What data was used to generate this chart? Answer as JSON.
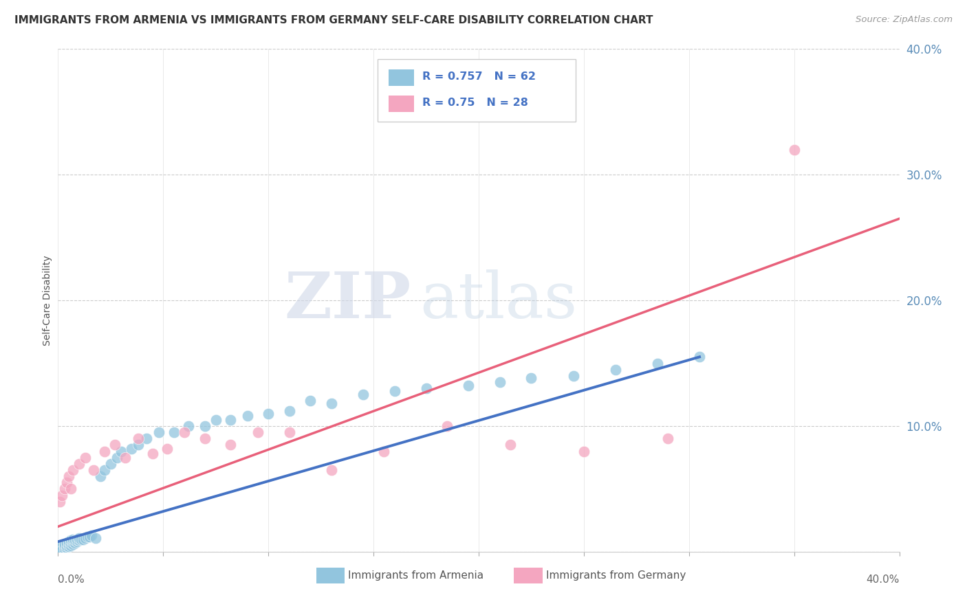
{
  "title": "IMMIGRANTS FROM ARMENIA VS IMMIGRANTS FROM GERMANY SELF-CARE DISABILITY CORRELATION CHART",
  "source": "Source: ZipAtlas.com",
  "ylabel": "Self-Care Disability",
  "armenia_R": 0.757,
  "armenia_N": 62,
  "germany_R": 0.75,
  "germany_N": 28,
  "armenia_color": "#92C5DE",
  "germany_color": "#F4A6C0",
  "armenia_line_color": "#4472C4",
  "germany_line_color": "#E8607A",
  "watermark_zip": "ZIP",
  "watermark_atlas": "atlas",
  "xlim": [
    0.0,
    0.4
  ],
  "ylim": [
    0.0,
    0.4
  ],
  "yticks": [
    0.0,
    0.1,
    0.2,
    0.3,
    0.4
  ],
  "ytick_labels": [
    "",
    "10.0%",
    "20.0%",
    "30.0%",
    "40.0%"
  ],
  "armenia_scatter_x": [
    0.001,
    0.001,
    0.002,
    0.002,
    0.002,
    0.003,
    0.003,
    0.003,
    0.004,
    0.004,
    0.004,
    0.005,
    0.005,
    0.005,
    0.006,
    0.006,
    0.006,
    0.007,
    0.007,
    0.007,
    0.008,
    0.008,
    0.009,
    0.009,
    0.01,
    0.01,
    0.011,
    0.012,
    0.013,
    0.014,
    0.015,
    0.016,
    0.018,
    0.02,
    0.022,
    0.025,
    0.028,
    0.03,
    0.035,
    0.038,
    0.042,
    0.048,
    0.055,
    0.062,
    0.07,
    0.075,
    0.082,
    0.09,
    0.1,
    0.11,
    0.12,
    0.13,
    0.145,
    0.16,
    0.175,
    0.195,
    0.21,
    0.225,
    0.245,
    0.265,
    0.285,
    0.305
  ],
  "armenia_scatter_y": [
    0.001,
    0.003,
    0.002,
    0.004,
    0.001,
    0.002,
    0.004,
    0.006,
    0.003,
    0.005,
    0.007,
    0.004,
    0.006,
    0.008,
    0.005,
    0.007,
    0.009,
    0.006,
    0.008,
    0.01,
    0.007,
    0.009,
    0.008,
    0.01,
    0.009,
    0.011,
    0.01,
    0.01,
    0.011,
    0.012,
    0.012,
    0.013,
    0.011,
    0.06,
    0.065,
    0.07,
    0.075,
    0.08,
    0.082,
    0.085,
    0.09,
    0.095,
    0.095,
    0.1,
    0.1,
    0.105,
    0.105,
    0.108,
    0.11,
    0.112,
    0.12,
    0.118,
    0.125,
    0.128,
    0.13,
    0.132,
    0.135,
    0.138,
    0.14,
    0.145,
    0.15,
    0.155
  ],
  "germany_scatter_x": [
    0.001,
    0.002,
    0.003,
    0.004,
    0.005,
    0.006,
    0.007,
    0.01,
    0.013,
    0.017,
    0.022,
    0.027,
    0.032,
    0.038,
    0.045,
    0.052,
    0.06,
    0.07,
    0.082,
    0.095,
    0.11,
    0.13,
    0.155,
    0.185,
    0.215,
    0.25,
    0.29,
    0.35
  ],
  "germany_scatter_y": [
    0.04,
    0.045,
    0.05,
    0.055,
    0.06,
    0.05,
    0.065,
    0.07,
    0.075,
    0.065,
    0.08,
    0.085,
    0.075,
    0.09,
    0.078,
    0.082,
    0.095,
    0.09,
    0.085,
    0.095,
    0.095,
    0.065,
    0.08,
    0.1,
    0.085,
    0.08,
    0.09,
    0.32
  ],
  "armenia_trend_x": [
    0.0,
    0.305
  ],
  "armenia_trend_y": [
    0.008,
    0.155
  ],
  "germany_trend_x": [
    0.0,
    0.4
  ],
  "germany_trend_y": [
    0.02,
    0.265
  ]
}
